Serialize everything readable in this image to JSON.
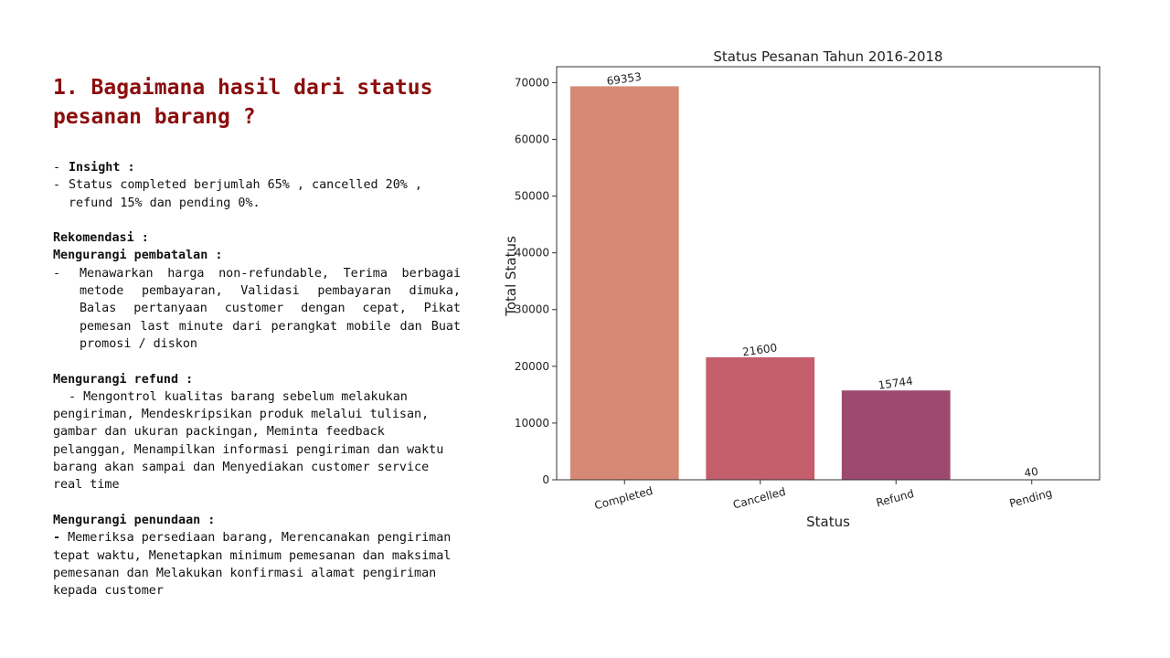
{
  "slide": {
    "title": "1. Bagaimana hasil dari status pesanan barang ?",
    "insight_label": "Insight :",
    "insight_text": "Status completed berjumlah 65% , cancelled 20% , refund 15% dan pending 0%.",
    "rekomendasi_label": "Rekomendasi :",
    "sections": [
      {
        "heading": "Mengurangi pembatalan :",
        "text": "Menawarkan harga non-refundable, Terima berbagai metode pembayaran, Validasi pembayaran dimuka, Balas pertanyaan customer dengan cepat, Pikat pemesan last minute dari perangkat mobile dan Buat promosi / diskon"
      },
      {
        "heading": "Mengurangi refund :",
        "text": "Mengontrol kualitas barang sebelum melakukan pengiriman, Mendeskripsikan produk melalui tulisan, gambar dan ukuran packingan, Meminta feedback pelanggan, Menampilkan informasi pengiriman dan waktu barang akan sampai dan Menyediakan customer service real time"
      },
      {
        "heading": "Mengurangi penundaan :",
        "text": "Memeriksa persediaan barang, Merencanakan pengiriman tepat waktu, Menetapkan minimum pemesanan dan maksimal pemesanan dan Melakukan konfirmasi alamat pengiriman kepada customer"
      }
    ]
  },
  "chart_data": {
    "type": "bar",
    "title": "Status Pesanan Tahun 2016-2018",
    "xlabel": "Status",
    "ylabel": "Total Status",
    "categories": [
      "Completed",
      "Cancelled",
      "Refund",
      "Pending"
    ],
    "values": [
      69353,
      21600,
      15744,
      40
    ],
    "data_labels": [
      "69353",
      "21600",
      "15744",
      "40"
    ],
    "colors": [
      "#d68a76",
      "#c45e6a",
      "#9d496f",
      "#6e3a6e"
    ],
    "ylim": [
      0,
      72800
    ],
    "yticks": [
      0,
      10000,
      20000,
      30000,
      40000,
      50000,
      60000,
      70000
    ],
    "grid": false,
    "legend": "none"
  }
}
